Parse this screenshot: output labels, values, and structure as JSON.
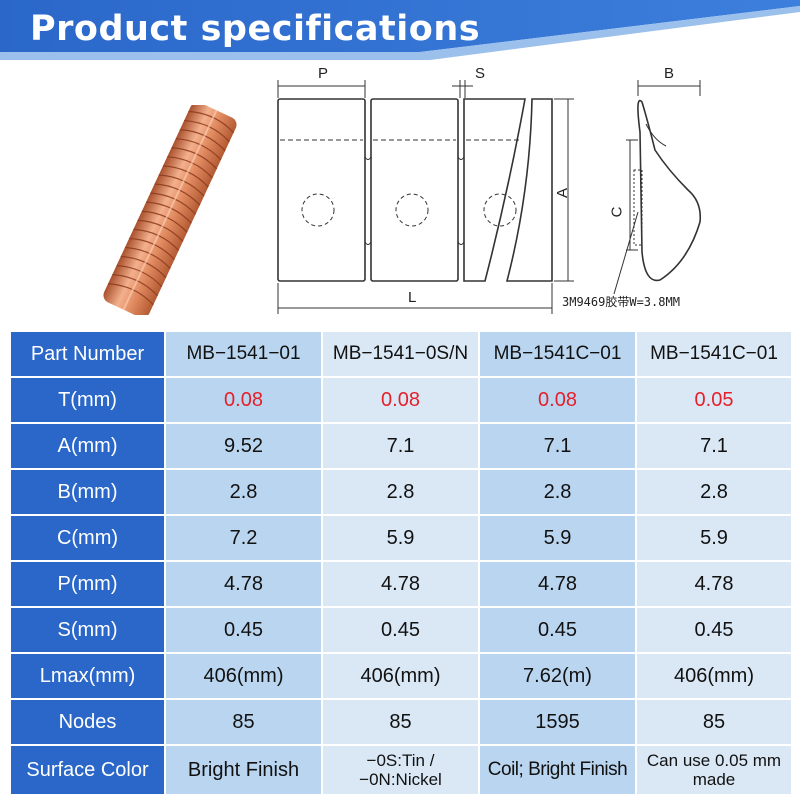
{
  "banner": {
    "title": "Product specifications",
    "color": "#2a67c9"
  },
  "drawing": {
    "labels": {
      "p": "P",
      "s": "S",
      "b": "B",
      "a": "A",
      "c": "C",
      "l": "L"
    },
    "tape_note": "3M9469胶带W=3.8MM"
  },
  "table": {
    "header_color": "#2a67c9",
    "header": {
      "label": "Part Number",
      "columns": [
        "MB−1541−01",
        "MB−1541−0S/N",
        "MB−1541C−01",
        "MB−1541C−01"
      ]
    },
    "rows": [
      {
        "label": "T(mm)",
        "values": [
          "0.08",
          "0.08",
          "0.08",
          "0.05"
        ],
        "highlight_color": "#e5202a"
      },
      {
        "label": "A(mm)",
        "values": [
          "9.52",
          "7.1",
          "7.1",
          "7.1"
        ]
      },
      {
        "label": "B(mm)",
        "values": [
          "2.8",
          "2.8",
          "2.8",
          "2.8"
        ]
      },
      {
        "label": "C(mm)",
        "values": [
          "7.2",
          "5.9",
          "5.9",
          "5.9"
        ]
      },
      {
        "label": "P(mm)",
        "values": [
          "4.78",
          "4.78",
          "4.78",
          "4.78"
        ]
      },
      {
        "label": "S(mm)",
        "values": [
          "0.45",
          "0.45",
          "0.45",
          "0.45"
        ]
      },
      {
        "label": "Lmax(mm)",
        "values": [
          "406(mm)",
          "406(mm)",
          "7.62(m)",
          "406(mm)"
        ]
      },
      {
        "label": "Nodes",
        "values": [
          "85",
          "85",
          "1595",
          "85"
        ]
      },
      {
        "label": "Surface Color",
        "values": [
          [
            "Bright Finish"
          ],
          [
            "−0S:Tin /",
            "−0N:Nickel"
          ],
          [
            "Coil; Bright Finish"
          ],
          [
            "Can use 0.05 mm",
            "made"
          ]
        ]
      }
    ]
  }
}
